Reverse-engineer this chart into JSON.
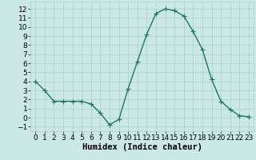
{
  "title": "",
  "xlabel": "Humidex (Indice chaleur)",
  "x": [
    0,
    1,
    2,
    3,
    4,
    5,
    6,
    7,
    8,
    9,
    10,
    11,
    12,
    13,
    14,
    15,
    16,
    17,
    18,
    19,
    20,
    21,
    22,
    23
  ],
  "y": [
    4.0,
    3.0,
    1.8,
    1.8,
    1.8,
    1.8,
    1.5,
    0.5,
    -0.8,
    -0.2,
    3.2,
    6.2,
    9.2,
    11.5,
    12.0,
    11.8,
    11.2,
    9.5,
    7.5,
    4.2,
    1.8,
    0.9,
    0.2,
    0.1
  ],
  "line_color": "#1a7a5e",
  "marker": "+",
  "marker_size": 4,
  "bg_color": "#cce8e6",
  "grid_color": "#aacfcc",
  "ylim": [
    -1.5,
    12.8
  ],
  "xlim": [
    -0.5,
    23.5
  ],
  "yticks": [
    -1,
    0,
    1,
    2,
    3,
    4,
    5,
    6,
    7,
    8,
    9,
    10,
    11,
    12
  ],
  "xticks": [
    0,
    1,
    2,
    3,
    4,
    5,
    6,
    7,
    8,
    9,
    10,
    11,
    12,
    13,
    14,
    15,
    16,
    17,
    18,
    19,
    20,
    21,
    22,
    23
  ],
  "tick_label_fontsize": 6.5,
  "axis_label_fontsize": 7.5,
  "line_width": 1.0,
  "marker_edge_width": 0.8
}
